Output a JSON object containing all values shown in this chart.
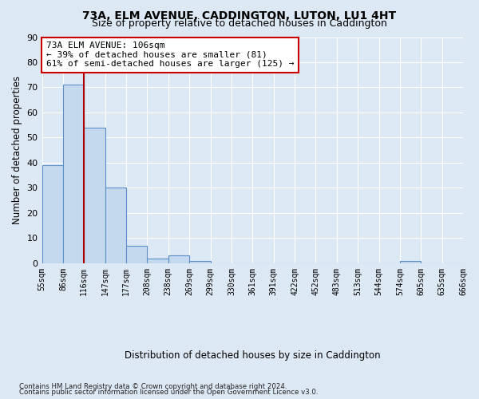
{
  "title1": "73A, ELM AVENUE, CADDINGTON, LUTON, LU1 4HT",
  "title2": "Size of property relative to detached houses in Caddington",
  "xlabel": "Distribution of detached houses by size in Caddington",
  "ylabel": "Number of detached properties",
  "bar_values": [
    39,
    71,
    54,
    30,
    7,
    2,
    3,
    1,
    0,
    0,
    0,
    0,
    0,
    0,
    0,
    0,
    0,
    1,
    0,
    0
  ],
  "x_labels": [
    "55sqm",
    "86sqm",
    "116sqm",
    "147sqm",
    "177sqm",
    "208sqm",
    "238sqm",
    "269sqm",
    "299sqm",
    "330sqm",
    "361sqm",
    "391sqm",
    "422sqm",
    "452sqm",
    "483sqm",
    "513sqm",
    "544sqm",
    "574sqm",
    "605sqm",
    "635sqm",
    "666sqm"
  ],
  "bar_color": "#c5d9ee",
  "bar_edge_color": "#5b8fc9",
  "vline_color": "#aa0000",
  "annotation_title": "73A ELM AVENUE: 106sqm",
  "annotation_line1": "← 39% of detached houses are smaller (81)",
  "annotation_line2": "61% of semi-detached houses are larger (125) →",
  "annotation_box_facecolor": "#ffffff",
  "annotation_box_edgecolor": "#cc0000",
  "ylim": [
    0,
    90
  ],
  "yticks": [
    0,
    10,
    20,
    30,
    40,
    50,
    60,
    70,
    80,
    90
  ],
  "footer1": "Contains HM Land Registry data © Crown copyright and database right 2024.",
  "footer2": "Contains public sector information licensed under the Open Government Licence v3.0.",
  "bg_color": "#dde8f5",
  "plot_bg_color": "#dde8f5",
  "grid_color": "#ffffff"
}
